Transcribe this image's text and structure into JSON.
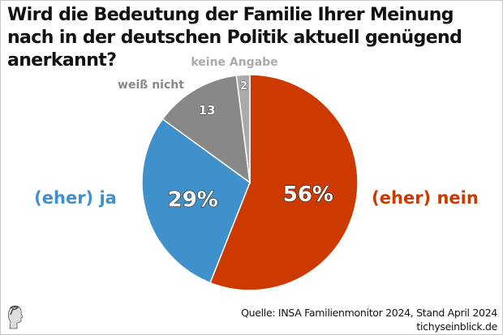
{
  "title": "Wird die Bedeutung der Familie Ihrer Meinung nach in der deutschen Politik aktuell genügend anerkannt?",
  "chart_data": {
    "type": "pie",
    "title": "Wird die Bedeutung der Familie Ihrer Meinung nach in der deutschen Politik aktuell genügend anerkannt?",
    "slices": [
      {
        "label": "(eher) nein",
        "value": 56,
        "value_label": "56%",
        "color": "#cc3a00"
      },
      {
        "label": "(eher) ja",
        "value": 29,
        "value_label": "29%",
        "color": "#4090cc"
      },
      {
        "label": "weiß nicht",
        "value": 13,
        "value_label": "13",
        "color": "#888888"
      },
      {
        "label": "keine Angabe",
        "value": 2,
        "value_label": "2",
        "color": "#aaaaaa"
      }
    ],
    "start": "top",
    "direction": "clockwise"
  },
  "footer": {
    "source": "Quelle: INSA Familienmonitor 2024, Stand April 2024",
    "site": "tichyseinblick.de"
  },
  "logo": {
    "icon": "head-profile-icon"
  }
}
